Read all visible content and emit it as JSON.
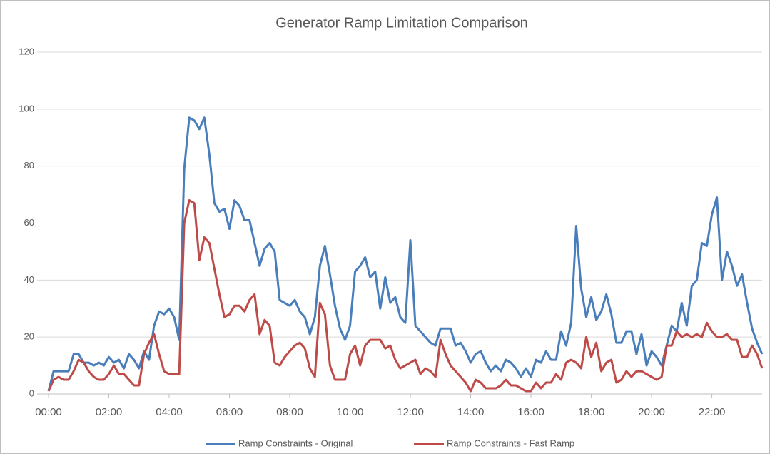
{
  "chart_data": {
    "type": "line",
    "title": "Generator Ramp Limitation Comparison",
    "categories": [
      "00:00",
      null,
      null,
      null,
      null,
      null,
      null,
      null,
      null,
      null,
      null,
      null,
      "02:00",
      null,
      null,
      null,
      null,
      null,
      null,
      null,
      null,
      null,
      null,
      null,
      "04:00",
      null,
      null,
      null,
      null,
      null,
      null,
      null,
      null,
      null,
      null,
      null,
      "06:00",
      null,
      null,
      null,
      null,
      null,
      null,
      null,
      null,
      null,
      null,
      null,
      "08:00",
      null,
      null,
      null,
      null,
      null,
      null,
      null,
      null,
      null,
      null,
      null,
      "10:00",
      null,
      null,
      null,
      null,
      null,
      null,
      null,
      null,
      null,
      null,
      null,
      "12:00",
      null,
      null,
      null,
      null,
      null,
      null,
      null,
      null,
      null,
      null,
      null,
      "14:00",
      null,
      null,
      null,
      null,
      null,
      null,
      null,
      null,
      null,
      null,
      null,
      "16:00",
      null,
      null,
      null,
      null,
      null,
      null,
      null,
      null,
      null,
      null,
      null,
      "18:00",
      null,
      null,
      null,
      null,
      null,
      null,
      null,
      null,
      null,
      null,
      null,
      "20:00",
      null,
      null,
      null,
      null,
      null,
      null,
      null,
      null,
      null,
      null,
      null,
      "22:00",
      null,
      null,
      null,
      null,
      null,
      null,
      null,
      null,
      null,
      null
    ],
    "series": [
      {
        "name": "Ramp Constraints - Original",
        "color": "#4a7ebb",
        "values": [
          1,
          8,
          8,
          8,
          8,
          14,
          14,
          11,
          11,
          10,
          11,
          10,
          13,
          11,
          12,
          9,
          14,
          12,
          9,
          15,
          12,
          24,
          29,
          28,
          30,
          27,
          19,
          79,
          97,
          96,
          93,
          97,
          84,
          67,
          64,
          65,
          58,
          68,
          66,
          61,
          61,
          53,
          45,
          51,
          53,
          50,
          33,
          32,
          31,
          33,
          29,
          27,
          21,
          27,
          45,
          52,
          42,
          31,
          23,
          19,
          24,
          43,
          45,
          48,
          41,
          43,
          30,
          41,
          32,
          34,
          27,
          25,
          54,
          24,
          22,
          20,
          18,
          17,
          23,
          23,
          23,
          17,
          18,
          15,
          11,
          14,
          15,
          11,
          8,
          10,
          8,
          12,
          11,
          9,
          6,
          9,
          6,
          12,
          11,
          15,
          12,
          12,
          22,
          17,
          25,
          59,
          37,
          27,
          34,
          26,
          29,
          35,
          28,
          18,
          18,
          22,
          22,
          14,
          21,
          10,
          15,
          13,
          10,
          17,
          24,
          22,
          32,
          24,
          38,
          40,
          53,
          52,
          63,
          69,
          40,
          50,
          45,
          38,
          42,
          32,
          23,
          18,
          14
        ]
      },
      {
        "name": "Ramp Constraints - Fast Ramp",
        "color": "#be4b48",
        "values": [
          1,
          5,
          6,
          5,
          5,
          8,
          12,
          11,
          8,
          6,
          5,
          5,
          7,
          10,
          7,
          7,
          5,
          3,
          3,
          14,
          18,
          21,
          14,
          8,
          7,
          7,
          7,
          60,
          68,
          67,
          47,
          55,
          53,
          44,
          35,
          27,
          28,
          31,
          31,
          29,
          33,
          35,
          21,
          26,
          24,
          11,
          10,
          13,
          15,
          17,
          18,
          16,
          9,
          6,
          32,
          28,
          10,
          5,
          5,
          5,
          14,
          17,
          10,
          17,
          19,
          19,
          19,
          16,
          17,
          12,
          9,
          10,
          11,
          12,
          7,
          9,
          8,
          6,
          19,
          14,
          10,
          8,
          6,
          4,
          1,
          5,
          4,
          2,
          2,
          2,
          3,
          5,
          3,
          3,
          2,
          1,
          1,
          4,
          2,
          4,
          4,
          7,
          5,
          11,
          12,
          11,
          9,
          20,
          13,
          18,
          8,
          11,
          12,
          4,
          5,
          8,
          6,
          8,
          8,
          7,
          6,
          5,
          6,
          17,
          17,
          22,
          20,
          21,
          20,
          21,
          20,
          25,
          22,
          20,
          20,
          21,
          19,
          19,
          13,
          13,
          17,
          14,
          9
        ]
      }
    ],
    "ylim": [
      0,
      120
    ],
    "yticks": [
      0,
      20,
      40,
      60,
      80,
      100,
      120
    ],
    "grid": true,
    "legend": "bottom"
  }
}
